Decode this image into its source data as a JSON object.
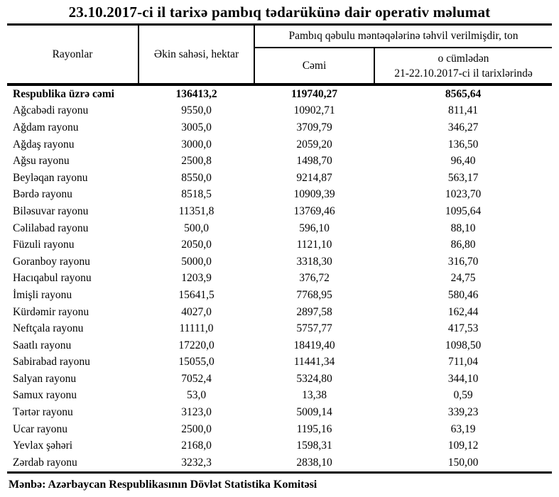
{
  "page": {
    "title": "23.10.2017-ci il tarixə pambıq tədarükünə dair operativ məlumat",
    "source_note": "Mənbə: Azərbaycan Respublikasının Dövlət Statistika Komitəsi"
  },
  "table": {
    "headers": {
      "region": "Rayonlar",
      "area": "Əkin sahəsi, hektar",
      "delivered_group": "Pambıq qəbulu məntəqələrinə təhvil verilmişdir, ton",
      "delivered_total": "Cəmi",
      "delivered_recent_line1": "o cümlədən",
      "delivered_recent_line2": "21-22.10.2017-ci il tarixlərində"
    },
    "total_row": {
      "name": "Respublika üzrə cəmi",
      "area": "136413,2",
      "delivered_total": "119740,27",
      "delivered_recent": "8565,64"
    },
    "rows": [
      {
        "name": "Ağcabədi rayonu",
        "area": "9550,0",
        "delivered_total": "10902,71",
        "delivered_recent": "811,41"
      },
      {
        "name": "Ağdam rayonu",
        "area": "3005,0",
        "delivered_total": "3709,79",
        "delivered_recent": "346,27"
      },
      {
        "name": "Ağdaş rayonu",
        "area": "3000,0",
        "delivered_total": "2059,20",
        "delivered_recent": "136,50"
      },
      {
        "name": "Ağsu rayonu",
        "area": "2500,8",
        "delivered_total": "1498,70",
        "delivered_recent": "96,40"
      },
      {
        "name": "Beyləqan rayonu",
        "area": "8550,0",
        "delivered_total": "9214,87",
        "delivered_recent": "563,17"
      },
      {
        "name": "Bərdə rayonu",
        "area": "8518,5",
        "delivered_total": "10909,39",
        "delivered_recent": "1023,70"
      },
      {
        "name": "Biləsuvar rayonu",
        "area": "11351,8",
        "delivered_total": "13769,46",
        "delivered_recent": "1095,64"
      },
      {
        "name": "Cəlilabad rayonu",
        "area": "500,0",
        "delivered_total": "596,10",
        "delivered_recent": "88,10"
      },
      {
        "name": "Füzuli rayonu",
        "area": "2050,0",
        "delivered_total": "1121,10",
        "delivered_recent": "86,80"
      },
      {
        "name": "Goranboy rayonu",
        "area": "5000,0",
        "delivered_total": "3318,30",
        "delivered_recent": "316,70"
      },
      {
        "name": "Hacıqabul rayonu",
        "area": "1203,9",
        "delivered_total": "376,72",
        "delivered_recent": "24,75"
      },
      {
        "name": "İmişli rayonu",
        "area": "15641,5",
        "delivered_total": "7768,95",
        "delivered_recent": "580,46"
      },
      {
        "name": "Kürdəmir rayonu",
        "area": "4027,0",
        "delivered_total": "2897,58",
        "delivered_recent": "162,44"
      },
      {
        "name": "Neftçala rayonu",
        "area": "11111,0",
        "delivered_total": "5757,77",
        "delivered_recent": "417,53"
      },
      {
        "name": "Saatlı rayonu",
        "area": "17220,0",
        "delivered_total": "18419,40",
        "delivered_recent": "1098,50"
      },
      {
        "name": "Sabirabad rayonu",
        "area": "15055,0",
        "delivered_total": "11441,34",
        "delivered_recent": "711,04"
      },
      {
        "name": "Salyan rayonu",
        "area": "7052,4",
        "delivered_total": "5324,80",
        "delivered_recent": "344,10"
      },
      {
        "name": "Samux rayonu",
        "area": "53,0",
        "delivered_total": "13,38",
        "delivered_recent": "0,59"
      },
      {
        "name": "Tərtər rayonu",
        "area": "3123,0",
        "delivered_total": "5009,14",
        "delivered_recent": "339,23"
      },
      {
        "name": "Ucar rayonu",
        "area": "2500,0",
        "delivered_total": "1195,16",
        "delivered_recent": "63,19"
      },
      {
        "name": "Yevlax şəhəri",
        "area": "2168,0",
        "delivered_total": "1598,31",
        "delivered_recent": "109,12"
      },
      {
        "name": "Zərdab rayonu",
        "area": "3232,3",
        "delivered_total": "2838,10",
        "delivered_recent": "150,00"
      }
    ]
  }
}
